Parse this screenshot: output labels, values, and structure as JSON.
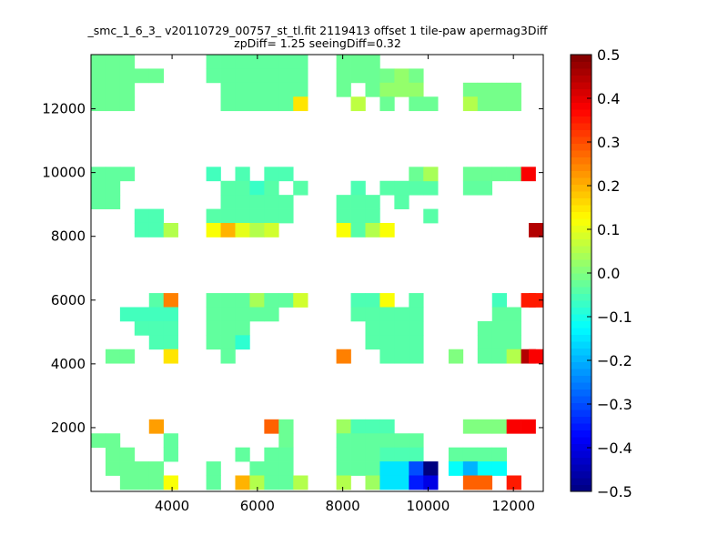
{
  "chart_data": {
    "type": "heatmap",
    "title": [
      "_smc_1_6_3_ v20110729_00757_st_tl.fit 2119413 offset 1 tile-paw apermag3Diff",
      "zpDiff= 1.25 seeingDiff=0.32"
    ],
    "xlim": [
      2100,
      12700
    ],
    "ylim": [
      0,
      13700
    ],
    "xticks": [
      "4000",
      "6000",
      "8000",
      "10000",
      "12000"
    ],
    "xtick_values": [
      4000,
      6000,
      8000,
      10000,
      12000
    ],
    "yticks": [
      "2000",
      "4000",
      "6000",
      "8000",
      "10000",
      "12000"
    ],
    "ytick_values": [
      2000,
      4000,
      6000,
      8000,
      10000,
      12000
    ],
    "colorbar": {
      "range": [
        -0.5,
        0.5
      ],
      "colormap": "jet",
      "ticks": [
        "0.5",
        "0.4",
        "0.3",
        "0.2",
        "0.1",
        "0.0",
        "−0.1",
        "−0.2",
        "−0.3",
        "−0.4",
        "−0.5"
      ],
      "tick_values": [
        0.5,
        0.4,
        0.3,
        0.2,
        0.1,
        0.0,
        -0.1,
        -0.2,
        -0.3,
        -0.4,
        -0.5
      ]
    },
    "cell_width": 338,
    "cell_height": 440,
    "cells": [
      [
        2100,
        13260,
        -0.02
      ],
      [
        2440,
        13260,
        -0.02
      ],
      [
        2780,
        13260,
        -0.02
      ],
      [
        2100,
        12820,
        -0.02
      ],
      [
        2440,
        12820,
        -0.02
      ],
      [
        2780,
        12820,
        -0.02
      ],
      [
        3120,
        12820,
        -0.02
      ],
      [
        3460,
        12820,
        -0.02
      ],
      [
        2100,
        12380,
        -0.02
      ],
      [
        2440,
        12380,
        -0.02
      ],
      [
        2780,
        12380,
        -0.02
      ],
      [
        2100,
        11940,
        -0.02
      ],
      [
        2440,
        11940,
        -0.02
      ],
      [
        2780,
        11940,
        -0.02
      ],
      [
        4800,
        13260,
        -0.03
      ],
      [
        5140,
        13260,
        -0.03
      ],
      [
        5480,
        13260,
        -0.03
      ],
      [
        5820,
        13260,
        -0.03
      ],
      [
        6160,
        13260,
        -0.03
      ],
      [
        6500,
        13260,
        -0.03
      ],
      [
        6840,
        13260,
        -0.03
      ],
      [
        4800,
        12820,
        -0.03
      ],
      [
        5140,
        12820,
        -0.03
      ],
      [
        5480,
        12820,
        -0.03
      ],
      [
        5820,
        12820,
        -0.03
      ],
      [
        6160,
        12820,
        -0.03
      ],
      [
        6500,
        12820,
        -0.03
      ],
      [
        6840,
        12820,
        -0.03
      ],
      [
        5140,
        12380,
        -0.03
      ],
      [
        5480,
        12380,
        -0.03
      ],
      [
        5820,
        12380,
        -0.03
      ],
      [
        6160,
        12380,
        -0.03
      ],
      [
        6500,
        12380,
        -0.03
      ],
      [
        6840,
        12380,
        -0.03
      ],
      [
        5140,
        11940,
        -0.03
      ],
      [
        5480,
        11940,
        -0.03
      ],
      [
        5820,
        11940,
        -0.03
      ],
      [
        6160,
        11940,
        -0.03
      ],
      [
        6500,
        11940,
        -0.03
      ],
      [
        6840,
        11940,
        0.15
      ],
      [
        7850,
        13260,
        -0.02
      ],
      [
        8190,
        13260,
        -0.02
      ],
      [
        8530,
        13260,
        -0.02
      ],
      [
        7850,
        12820,
        -0.02
      ],
      [
        8190,
        12820,
        -0.02
      ],
      [
        8530,
        12820,
        -0.02
      ],
      [
        8870,
        12820,
        -0.01
      ],
      [
        9210,
        12820,
        0.02
      ],
      [
        9550,
        12820,
        -0.01
      ],
      [
        7850,
        12380,
        -0.02
      ],
      [
        8530,
        12380,
        -0.02
      ],
      [
        8870,
        12380,
        0.02
      ],
      [
        9210,
        12380,
        0.02
      ],
      [
        9550,
        12380,
        0.02
      ],
      [
        8190,
        11940,
        0.06
      ],
      [
        8870,
        11940,
        -0.02
      ],
      [
        9550,
        11940,
        -0.02
      ],
      [
        9890,
        11940,
        -0.02
      ],
      [
        10820,
        12380,
        -0.01
      ],
      [
        11160,
        12380,
        -0.01
      ],
      [
        11500,
        12380,
        -0.01
      ],
      [
        11840,
        12380,
        -0.01
      ],
      [
        10820,
        11940,
        0.05
      ],
      [
        11160,
        11940,
        -0.01
      ],
      [
        11500,
        11940,
        -0.01
      ],
      [
        11840,
        11940,
        -0.01
      ],
      [
        2100,
        9740,
        -0.03
      ],
      [
        2440,
        9740,
        -0.03
      ],
      [
        2780,
        9740,
        -0.03
      ],
      [
        2100,
        9300,
        -0.03
      ],
      [
        2440,
        9300,
        -0.03
      ],
      [
        2100,
        8860,
        -0.03
      ],
      [
        2440,
        8860,
        -0.03
      ],
      [
        4800,
        9740,
        -0.06
      ],
      [
        5480,
        9740,
        -0.05
      ],
      [
        6160,
        9740,
        -0.05
      ],
      [
        6500,
        9740,
        -0.05
      ],
      [
        5140,
        9300,
        -0.04
      ],
      [
        5480,
        9300,
        -0.04
      ],
      [
        5820,
        9300,
        -0.07
      ],
      [
        6160,
        9300,
        -0.04
      ],
      [
        6840,
        9300,
        -0.04
      ],
      [
        5140,
        8860,
        -0.04
      ],
      [
        5480,
        8860,
        -0.04
      ],
      [
        5820,
        8860,
        -0.04
      ],
      [
        6160,
        8860,
        -0.04
      ],
      [
        6500,
        8860,
        -0.04
      ],
      [
        4800,
        8420,
        -0.04
      ],
      [
        5140,
        8420,
        -0.04
      ],
      [
        5480,
        8420,
        -0.04
      ],
      [
        5820,
        8420,
        -0.04
      ],
      [
        6160,
        8420,
        -0.04
      ],
      [
        6500,
        8420,
        -0.04
      ],
      [
        3120,
        8420,
        -0.05
      ],
      [
        3460,
        8420,
        -0.05
      ],
      [
        3120,
        7980,
        -0.05
      ],
      [
        3460,
        7980,
        -0.05
      ],
      [
        3800,
        7980,
        0.05
      ],
      [
        4800,
        7980,
        0.12
      ],
      [
        5140,
        7980,
        0.2
      ],
      [
        5480,
        7980,
        0.1
      ],
      [
        5820,
        7980,
        0.05
      ],
      [
        6160,
        7980,
        0.08
      ],
      [
        8190,
        9300,
        -0.05
      ],
      [
        8870,
        9300,
        -0.04
      ],
      [
        9210,
        9300,
        -0.04
      ],
      [
        9550,
        9300,
        -0.04
      ],
      [
        9890,
        9300,
        -0.04
      ],
      [
        9550,
        9740,
        -0.02
      ],
      [
        9890,
        9740,
        0.04
      ],
      [
        7850,
        8860,
        -0.04
      ],
      [
        8190,
        8860,
        -0.04
      ],
      [
        8530,
        8860,
        -0.04
      ],
      [
        9210,
        8860,
        -0.04
      ],
      [
        7850,
        8420,
        -0.04
      ],
      [
        8190,
        8420,
        -0.04
      ],
      [
        8530,
        8420,
        -0.04
      ],
      [
        9890,
        8420,
        -0.04
      ],
      [
        7850,
        7980,
        0.12
      ],
      [
        8190,
        7980,
        -0.04
      ],
      [
        8530,
        7980,
        0.05
      ],
      [
        8870,
        7980,
        0.12
      ],
      [
        10820,
        9740,
        -0.02
      ],
      [
        11160,
        9740,
        -0.02
      ],
      [
        11500,
        9740,
        -0.02
      ],
      [
        11840,
        9740,
        -0.02
      ],
      [
        12180,
        9740,
        0.38
      ],
      [
        10820,
        9300,
        -0.03
      ],
      [
        11160,
        9300,
        -0.03
      ],
      [
        12360,
        7980,
        0.45
      ],
      [
        3460,
        5780,
        -0.04
      ],
      [
        3800,
        5780,
        0.25
      ],
      [
        2780,
        5340,
        -0.06
      ],
      [
        3120,
        5340,
        -0.06
      ],
      [
        3460,
        5340,
        -0.06
      ],
      [
        3800,
        5340,
        -0.06
      ],
      [
        3120,
        4900,
        -0.05
      ],
      [
        3460,
        4900,
        -0.05
      ],
      [
        3800,
        4900,
        -0.05
      ],
      [
        3460,
        4460,
        -0.05
      ],
      [
        3800,
        4460,
        -0.05
      ],
      [
        2440,
        4020,
        -0.02
      ],
      [
        2780,
        4020,
        -0.02
      ],
      [
        3800,
        4020,
        0.15
      ],
      [
        4800,
        5780,
        -0.03
      ],
      [
        5140,
        5780,
        -0.03
      ],
      [
        5480,
        5780,
        -0.03
      ],
      [
        5820,
        5780,
        0.04
      ],
      [
        6160,
        5780,
        -0.03
      ],
      [
        6500,
        5780,
        -0.03
      ],
      [
        6840,
        5780,
        0.08
      ],
      [
        4800,
        5340,
        -0.03
      ],
      [
        5140,
        5340,
        -0.03
      ],
      [
        5480,
        5340,
        -0.03
      ],
      [
        5820,
        5340,
        -0.03
      ],
      [
        6160,
        5340,
        -0.03
      ],
      [
        4800,
        4900,
        -0.03
      ],
      [
        5140,
        4900,
        -0.03
      ],
      [
        5480,
        4900,
        -0.03
      ],
      [
        4800,
        4460,
        -0.03
      ],
      [
        5140,
        4460,
        -0.03
      ],
      [
        5480,
        4460,
        -0.08
      ],
      [
        5140,
        4020,
        -0.03
      ],
      [
        8190,
        5780,
        -0.05
      ],
      [
        8530,
        5780,
        -0.05
      ],
      [
        8870,
        5780,
        0.12
      ],
      [
        9550,
        5780,
        -0.04
      ],
      [
        8190,
        5340,
        -0.04
      ],
      [
        8530,
        5340,
        -0.04
      ],
      [
        8870,
        5340,
        -0.04
      ],
      [
        9210,
        5340,
        -0.04
      ],
      [
        9550,
        5340,
        -0.04
      ],
      [
        8530,
        4900,
        -0.04
      ],
      [
        8870,
        4900,
        -0.04
      ],
      [
        9210,
        4900,
        -0.04
      ],
      [
        9550,
        4900,
        -0.04
      ],
      [
        8530,
        4460,
        -0.04
      ],
      [
        8870,
        4460,
        -0.04
      ],
      [
        9210,
        4460,
        -0.04
      ],
      [
        9550,
        4460,
        -0.04
      ],
      [
        7850,
        4020,
        0.25
      ],
      [
        8870,
        4020,
        -0.04
      ],
      [
        9210,
        4020,
        -0.04
      ],
      [
        9550,
        4020,
        -0.04
      ],
      [
        10480,
        4020,
        0.0
      ],
      [
        11500,
        5780,
        -0.06
      ],
      [
        12180,
        5780,
        0.35
      ],
      [
        12360,
        5780,
        0.35
      ],
      [
        11500,
        5340,
        -0.03
      ],
      [
        11840,
        5340,
        -0.03
      ],
      [
        11160,
        4900,
        -0.03
      ],
      [
        11500,
        4900,
        -0.03
      ],
      [
        11840,
        4900,
        -0.03
      ],
      [
        11160,
        4460,
        -0.03
      ],
      [
        11500,
        4460,
        -0.03
      ],
      [
        11840,
        4460,
        -0.03
      ],
      [
        11160,
        4020,
        -0.03
      ],
      [
        11500,
        4020,
        -0.03
      ],
      [
        11840,
        4020,
        0.05
      ],
      [
        12180,
        4020,
        0.45
      ],
      [
        12360,
        4020,
        0.38
      ],
      [
        3460,
        1820,
        0.22
      ],
      [
        2100,
        1380,
        -0.02
      ],
      [
        2440,
        1380,
        -0.02
      ],
      [
        3800,
        1380,
        -0.03
      ],
      [
        2440,
        940,
        -0.02
      ],
      [
        2780,
        940,
        -0.02
      ],
      [
        3800,
        940,
        -0.03
      ],
      [
        2440,
        500,
        -0.02
      ],
      [
        2780,
        500,
        -0.02
      ],
      [
        3120,
        500,
        -0.02
      ],
      [
        3460,
        500,
        -0.02
      ],
      [
        2780,
        60,
        -0.02
      ],
      [
        3120,
        60,
        -0.02
      ],
      [
        3460,
        60,
        -0.02
      ],
      [
        3800,
        60,
        0.12
      ],
      [
        4800,
        500,
        -0.03
      ],
      [
        4800,
        60,
        -0.03
      ],
      [
        6160,
        1820,
        0.28
      ],
      [
        6500,
        1820,
        -0.02
      ],
      [
        6500,
        1380,
        -0.02
      ],
      [
        5480,
        940,
        -0.03
      ],
      [
        6160,
        940,
        -0.03
      ],
      [
        6500,
        940,
        -0.03
      ],
      [
        5820,
        500,
        -0.03
      ],
      [
        6160,
        500,
        -0.03
      ],
      [
        6500,
        500,
        -0.03
      ],
      [
        5480,
        60,
        0.2
      ],
      [
        5820,
        60,
        0.05
      ],
      [
        6160,
        60,
        -0.03
      ],
      [
        6500,
        60,
        -0.03
      ],
      [
        6840,
        60,
        0.05
      ],
      [
        7850,
        1820,
        0.03
      ],
      [
        8190,
        1820,
        -0.05
      ],
      [
        8530,
        1820,
        -0.05
      ],
      [
        8870,
        1820,
        -0.05
      ],
      [
        7850,
        1380,
        -0.03
      ],
      [
        8190,
        1380,
        -0.03
      ],
      [
        8530,
        1380,
        -0.03
      ],
      [
        8870,
        1380,
        -0.03
      ],
      [
        9210,
        1380,
        -0.03
      ],
      [
        9550,
        1380,
        -0.03
      ],
      [
        7850,
        940,
        -0.03
      ],
      [
        8190,
        940,
        -0.03
      ],
      [
        8530,
        940,
        -0.03
      ],
      [
        8870,
        940,
        -0.05
      ],
      [
        9210,
        940,
        -0.05
      ],
      [
        9550,
        940,
        -0.05
      ],
      [
        7850,
        500,
        -0.03
      ],
      [
        8190,
        500,
        -0.03
      ],
      [
        8530,
        500,
        -0.03
      ],
      [
        8870,
        500,
        -0.15
      ],
      [
        9210,
        500,
        -0.15
      ],
      [
        9550,
        500,
        -0.3
      ],
      [
        9890,
        500,
        -0.5
      ],
      [
        7850,
        60,
        0.05
      ],
      [
        8530,
        60,
        0.03
      ],
      [
        8870,
        60,
        -0.15
      ],
      [
        9210,
        60,
        -0.15
      ],
      [
        9550,
        60,
        -0.35
      ],
      [
        9890,
        60,
        -0.4
      ],
      [
        10820,
        1820,
        0.0
      ],
      [
        11160,
        1820,
        0.0
      ],
      [
        11500,
        1820,
        0.0
      ],
      [
        11840,
        1820,
        0.38
      ],
      [
        12180,
        1820,
        0.38
      ],
      [
        10480,
        940,
        -0.03
      ],
      [
        10820,
        940,
        -0.03
      ],
      [
        11160,
        940,
        -0.03
      ],
      [
        11500,
        940,
        -0.03
      ],
      [
        10480,
        500,
        -0.12
      ],
      [
        10820,
        500,
        -0.2
      ],
      [
        11160,
        500,
        -0.12
      ],
      [
        11500,
        500,
        -0.12
      ],
      [
        10820,
        60,
        0.28
      ],
      [
        11160,
        60,
        0.28
      ],
      [
        11840,
        60,
        0.35
      ]
    ]
  }
}
